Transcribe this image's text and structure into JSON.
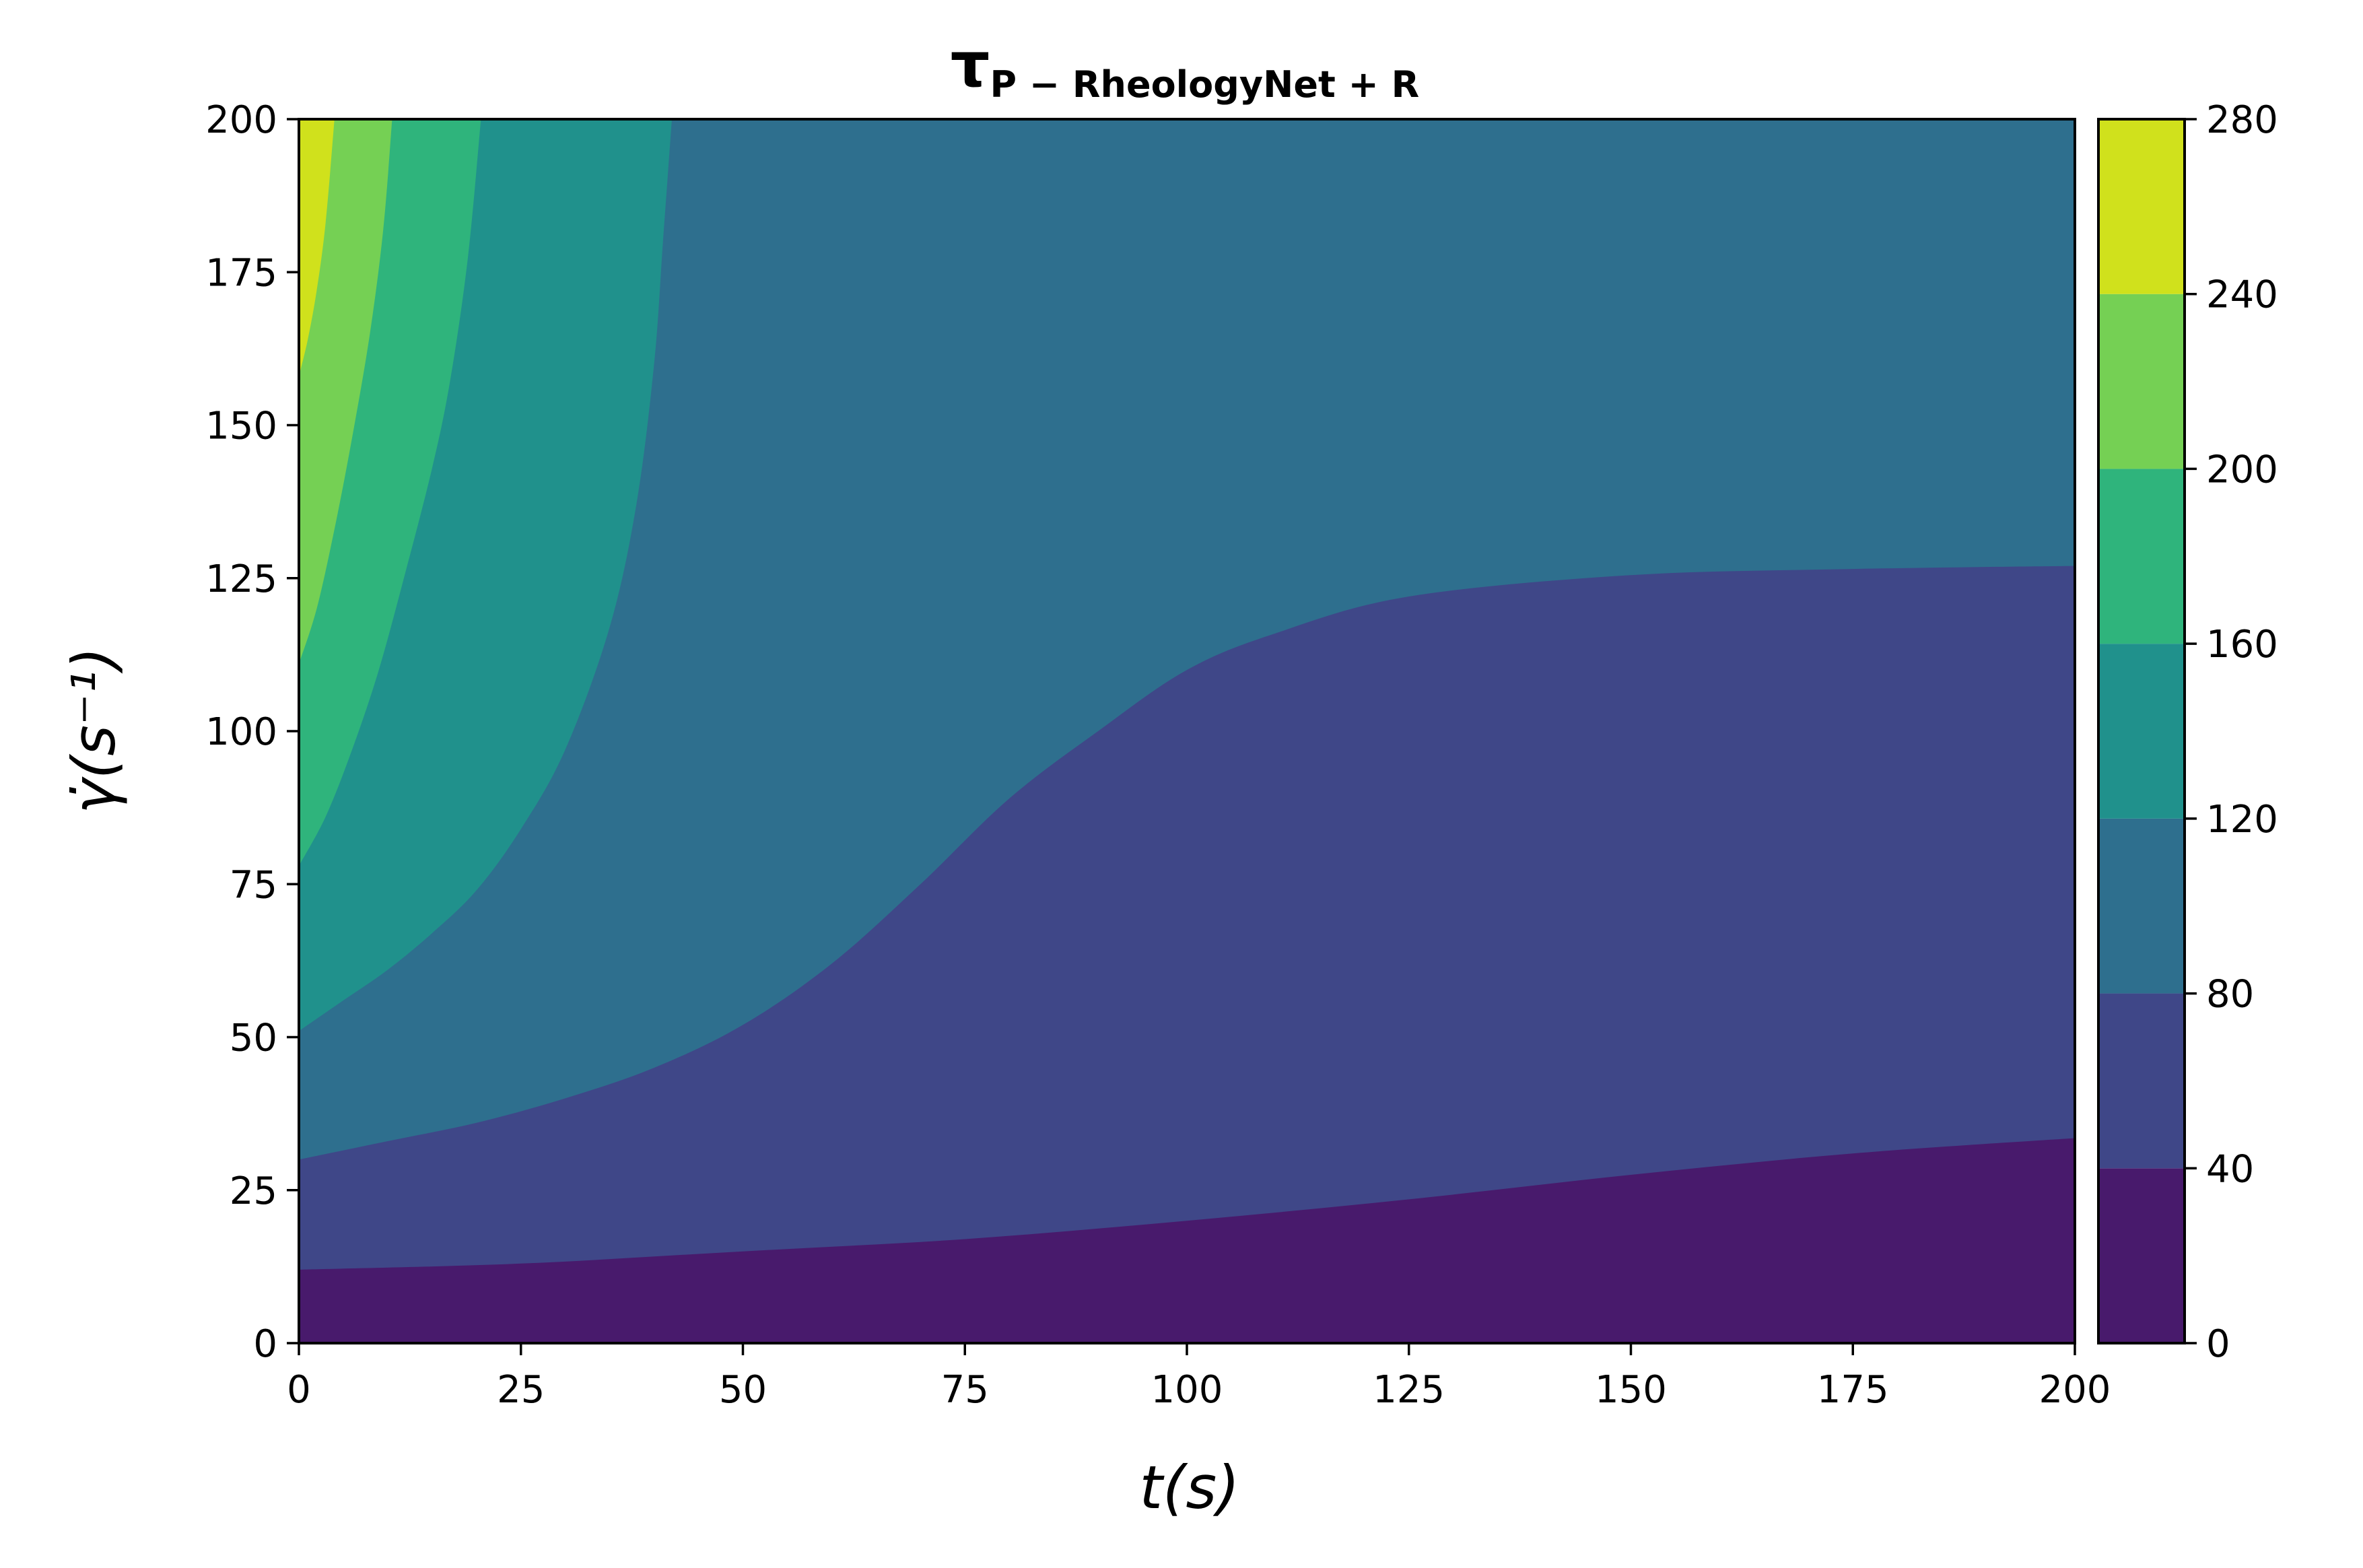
{
  "chart_data": {
    "type": "contourf",
    "title": {
      "symbol": "τ",
      "subscript": "P − RheologyNet + R"
    },
    "xlabel": "t(s)",
    "ylabel": "γ̇(s⁻¹)",
    "xlim": [
      0,
      200
    ],
    "ylim": [
      0,
      200
    ],
    "x_ticks": [
      "0",
      "25",
      "50",
      "75",
      "100",
      "125",
      "150",
      "175",
      "200"
    ],
    "y_ticks": [
      "0",
      "25",
      "50",
      "75",
      "100",
      "125",
      "150",
      "175",
      "200"
    ],
    "colorbar": {
      "levels": [
        0,
        40,
        80,
        120,
        160,
        200,
        240,
        280
      ],
      "tick_labels": [
        "0",
        "40",
        "80",
        "120",
        "160",
        "200",
        "240",
        "280"
      ],
      "colors": [
        "#481a6c",
        "#3f4788",
        "#2e6f8e",
        "#20918c",
        "#2fb47c",
        "#75d054",
        "#d0e11c"
      ]
    },
    "contour_boundaries": [
      {
        "level": 40,
        "points": [
          [
            0,
            12
          ],
          [
            25,
            13
          ],
          [
            50,
            15
          ],
          [
            75,
            17
          ],
          [
            100,
            20
          ],
          [
            125,
            23.5
          ],
          [
            150,
            27.5
          ],
          [
            175,
            31
          ],
          [
            200,
            33.5
          ]
        ]
      },
      {
        "level": 80,
        "points": [
          [
            0,
            30
          ],
          [
            10,
            33
          ],
          [
            20,
            36
          ],
          [
            30,
            40
          ],
          [
            40,
            45
          ],
          [
            50,
            52
          ],
          [
            60,
            62
          ],
          [
            70,
            75
          ],
          [
            80,
            89
          ],
          [
            90,
            100
          ],
          [
            100,
            110
          ],
          [
            110,
            116
          ],
          [
            125,
            122
          ],
          [
            150,
            125.5
          ],
          [
            175,
            126.5
          ],
          [
            200,
            127
          ]
        ]
      },
      {
        "level": 120,
        "points": [
          [
            0,
            51
          ],
          [
            5,
            56
          ],
          [
            10,
            61
          ],
          [
            15,
            67
          ],
          [
            20,
            74
          ],
          [
            25,
            84
          ],
          [
            30,
            97
          ],
          [
            35,
            117
          ],
          [
            38,
            137
          ],
          [
            40,
            160
          ],
          [
            41,
            180
          ],
          [
            42,
            200
          ]
        ]
      },
      {
        "level": 160,
        "points": [
          [
            0,
            78
          ],
          [
            3,
            86
          ],
          [
            6,
            97
          ],
          [
            9,
            110
          ],
          [
            12,
            126
          ],
          [
            15,
            143
          ],
          [
            17,
            157
          ],
          [
            19,
            177
          ],
          [
            20.5,
            200
          ]
        ]
      },
      {
        "level": 200,
        "points": [
          [
            0,
            111
          ],
          [
            2,
            120
          ],
          [
            4,
            133
          ],
          [
            6,
            148
          ],
          [
            8,
            165
          ],
          [
            9.5,
            182
          ],
          [
            10.5,
            200
          ]
        ]
      },
      {
        "level": 240,
        "points": [
          [
            0,
            158
          ],
          [
            1,
            164
          ],
          [
            2,
            172
          ],
          [
            3,
            183
          ],
          [
            4,
            200
          ]
        ]
      }
    ]
  }
}
